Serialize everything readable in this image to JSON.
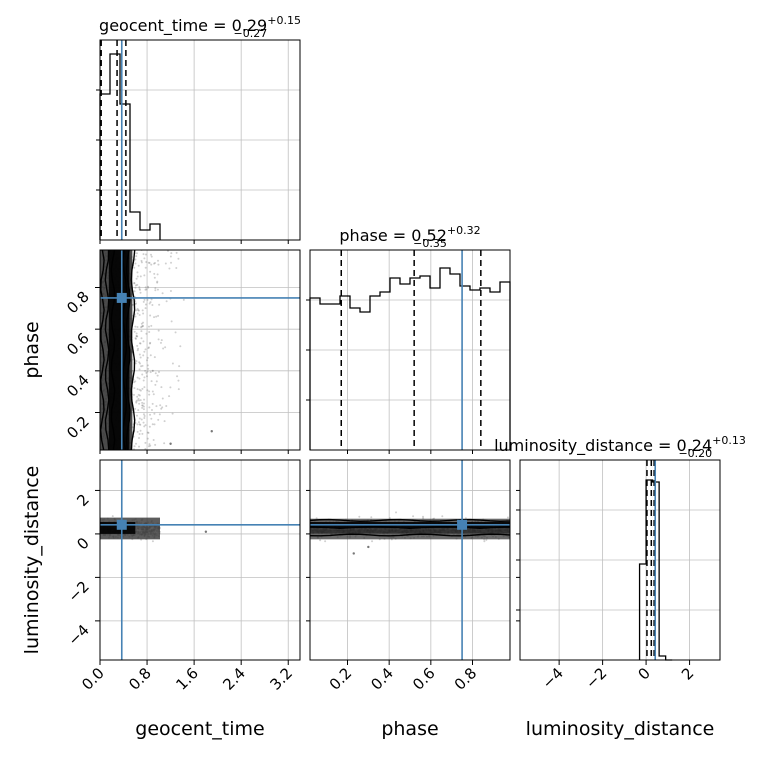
{
  "chart_data": {
    "type": "corner",
    "parameters": [
      "geocent_time",
      "phase",
      "luminosity_distance"
    ],
    "truths": {
      "geocent_time": 0.37,
      "phase": 0.75,
      "luminosity_distance": 0.42
    },
    "colors": {
      "truth": "#4682b4",
      "hist": "#000000",
      "grid": "#c0c0c0",
      "points": "#777777"
    },
    "titles": {
      "geocent_time": {
        "name": "geocent_time",
        "median": "0.29",
        "plus": "+0.15",
        "minus": "−0.27"
      },
      "phase": {
        "name": "phase",
        "median": "0.52",
        "plus": "+0.32",
        "minus": "−0.35"
      },
      "luminosity_distance": {
        "name": "luminosity_distance",
        "median": "0.24",
        "plus": "+0.13",
        "minus": "−0.20"
      }
    },
    "axes": {
      "geocent_time": {
        "range": [
          0.0,
          3.4
        ],
        "ticks": [
          0.0,
          0.8,
          1.6,
          2.4,
          3.2
        ],
        "tick_labels": [
          "0.0",
          "0.8",
          "1.6",
          "2.4",
          "3.2"
        ]
      },
      "phase": {
        "range": [
          0.02,
          0.98
        ],
        "ticks": [
          0.2,
          0.4,
          0.6,
          0.8
        ],
        "tick_labels": [
          "0.2",
          "0.4",
          "0.6",
          "0.8"
        ]
      },
      "luminosity_distance": {
        "range": [
          -5.8,
          3.4
        ],
        "ticks": [
          -4,
          -2,
          0,
          2
        ],
        "tick_labels": [
          "−4",
          "−2",
          "0",
          "2"
        ]
      }
    },
    "histograms": {
      "geocent_time": {
        "bin_edges": [
          0.0,
          0.17,
          0.34,
          0.51,
          0.68,
          0.85,
          1.02
        ],
        "counts": [
          0.73,
          0.93,
          0.68,
          0.14,
          0.05,
          0.08
        ],
        "quantiles": [
          0.02,
          0.29,
          0.44
        ]
      },
      "phase": {
        "bin_edges": [
          0.02,
          0.068,
          0.116,
          0.164,
          0.212,
          0.26,
          0.308,
          0.356,
          0.404,
          0.452,
          0.5,
          0.548,
          0.596,
          0.644,
          0.692,
          0.74,
          0.788,
          0.836,
          0.884,
          0.932,
          0.98
        ],
        "counts": [
          0.76,
          0.73,
          0.73,
          0.77,
          0.71,
          0.69,
          0.77,
          0.79,
          0.86,
          0.83,
          0.86,
          0.87,
          0.81,
          0.91,
          0.88,
          0.82,
          0.8,
          0.81,
          0.79,
          0.84
        ],
        "quantiles": [
          0.17,
          0.52,
          0.84
        ]
      },
      "luminosity_distance": {
        "bin_edges": [
          -0.3,
          0.0,
          0.3,
          0.6,
          0.9,
          1.2
        ],
        "counts": [
          0.48,
          0.9,
          0.89,
          0.02,
          0.0
        ],
        "quantiles": [
          0.04,
          0.24,
          0.37
        ]
      }
    }
  }
}
